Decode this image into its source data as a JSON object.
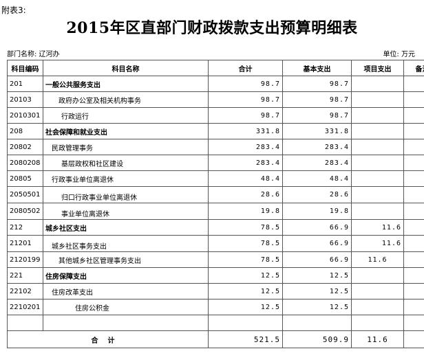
{
  "header": {
    "attachment": "附表3:",
    "title": "2015年区直部门财政拨款支出预算明细表",
    "department": "部门名称: 辽河办",
    "unit": "单位: 万元"
  },
  "table": {
    "columns": [
      "科目编码",
      "科目名称",
      "合计",
      "基本支出",
      "项目支出",
      "备注"
    ],
    "rows": [
      {
        "code": "201",
        "name": "一般公共服务支出",
        "total": "98.7",
        "basic": "98.7",
        "project": "",
        "note": ""
      },
      {
        "code": "20103",
        "name": "政府办公室及相关机构事务",
        "total": "98.7",
        "basic": "98.7",
        "project": "",
        "note": ""
      },
      {
        "code": "2010301",
        "name": "行政运行",
        "total": "98.7",
        "basic": "98.7",
        "project": "",
        "note": ""
      },
      {
        "code": "208",
        "name": "社会保障和就业支出",
        "total": "331.8",
        "basic": "331.8",
        "project": "",
        "note": ""
      },
      {
        "code": "20802",
        "name": "民政管理事务",
        "total": "283.4",
        "basic": "283.4",
        "project": "",
        "note": ""
      },
      {
        "code": "2080208",
        "name": "基层政权和社区建设",
        "total": "283.4",
        "basic": "283.4",
        "project": "",
        "note": ""
      },
      {
        "code": "20805",
        "name": "行政事业单位离退休",
        "total": "48.4",
        "basic": "48.4",
        "project": "",
        "note": ""
      },
      {
        "code": "2050501",
        "name": "归口行政事业单位离退休",
        "total": "28.6",
        "basic": "28.6",
        "project": "",
        "note": ""
      },
      {
        "code": "2080502",
        "name": "事业单位离退休",
        "total": "19.8",
        "basic": "19.8",
        "project": "",
        "note": ""
      },
      {
        "code": "212",
        "name": "城乡社区支出",
        "total": "78.5",
        "basic": "66.9",
        "project": "11.6",
        "note": ""
      },
      {
        "code": "21201",
        "name": "城乡社区事务支出",
        "total": "78.5",
        "basic": "66.9",
        "project": "11.6",
        "note": ""
      },
      {
        "code": "2120199",
        "name": "其他城乡社区管理事务支出",
        "total": "78.5",
        "basic": "66.9",
        "project": "11.6",
        "note": ""
      },
      {
        "code": "221",
        "name": "住房保障支出",
        "total": "12.5",
        "basic": "12.5",
        "project": "",
        "note": ""
      },
      {
        "code": "22102",
        "name": "住房改革支出",
        "total": "12.5",
        "basic": "12.5",
        "project": "",
        "note": ""
      },
      {
        "code": "2210201",
        "name": "住房公积金",
        "total": "12.5",
        "basic": "12.5",
        "project": "",
        "note": ""
      },
      {
        "code": "",
        "name": "",
        "total": "",
        "basic": "",
        "project": "",
        "note": ""
      }
    ],
    "total_row": {
      "label": "合计",
      "total": "521.5",
      "basic": "509.9",
      "project": "11.6",
      "note": ""
    }
  }
}
